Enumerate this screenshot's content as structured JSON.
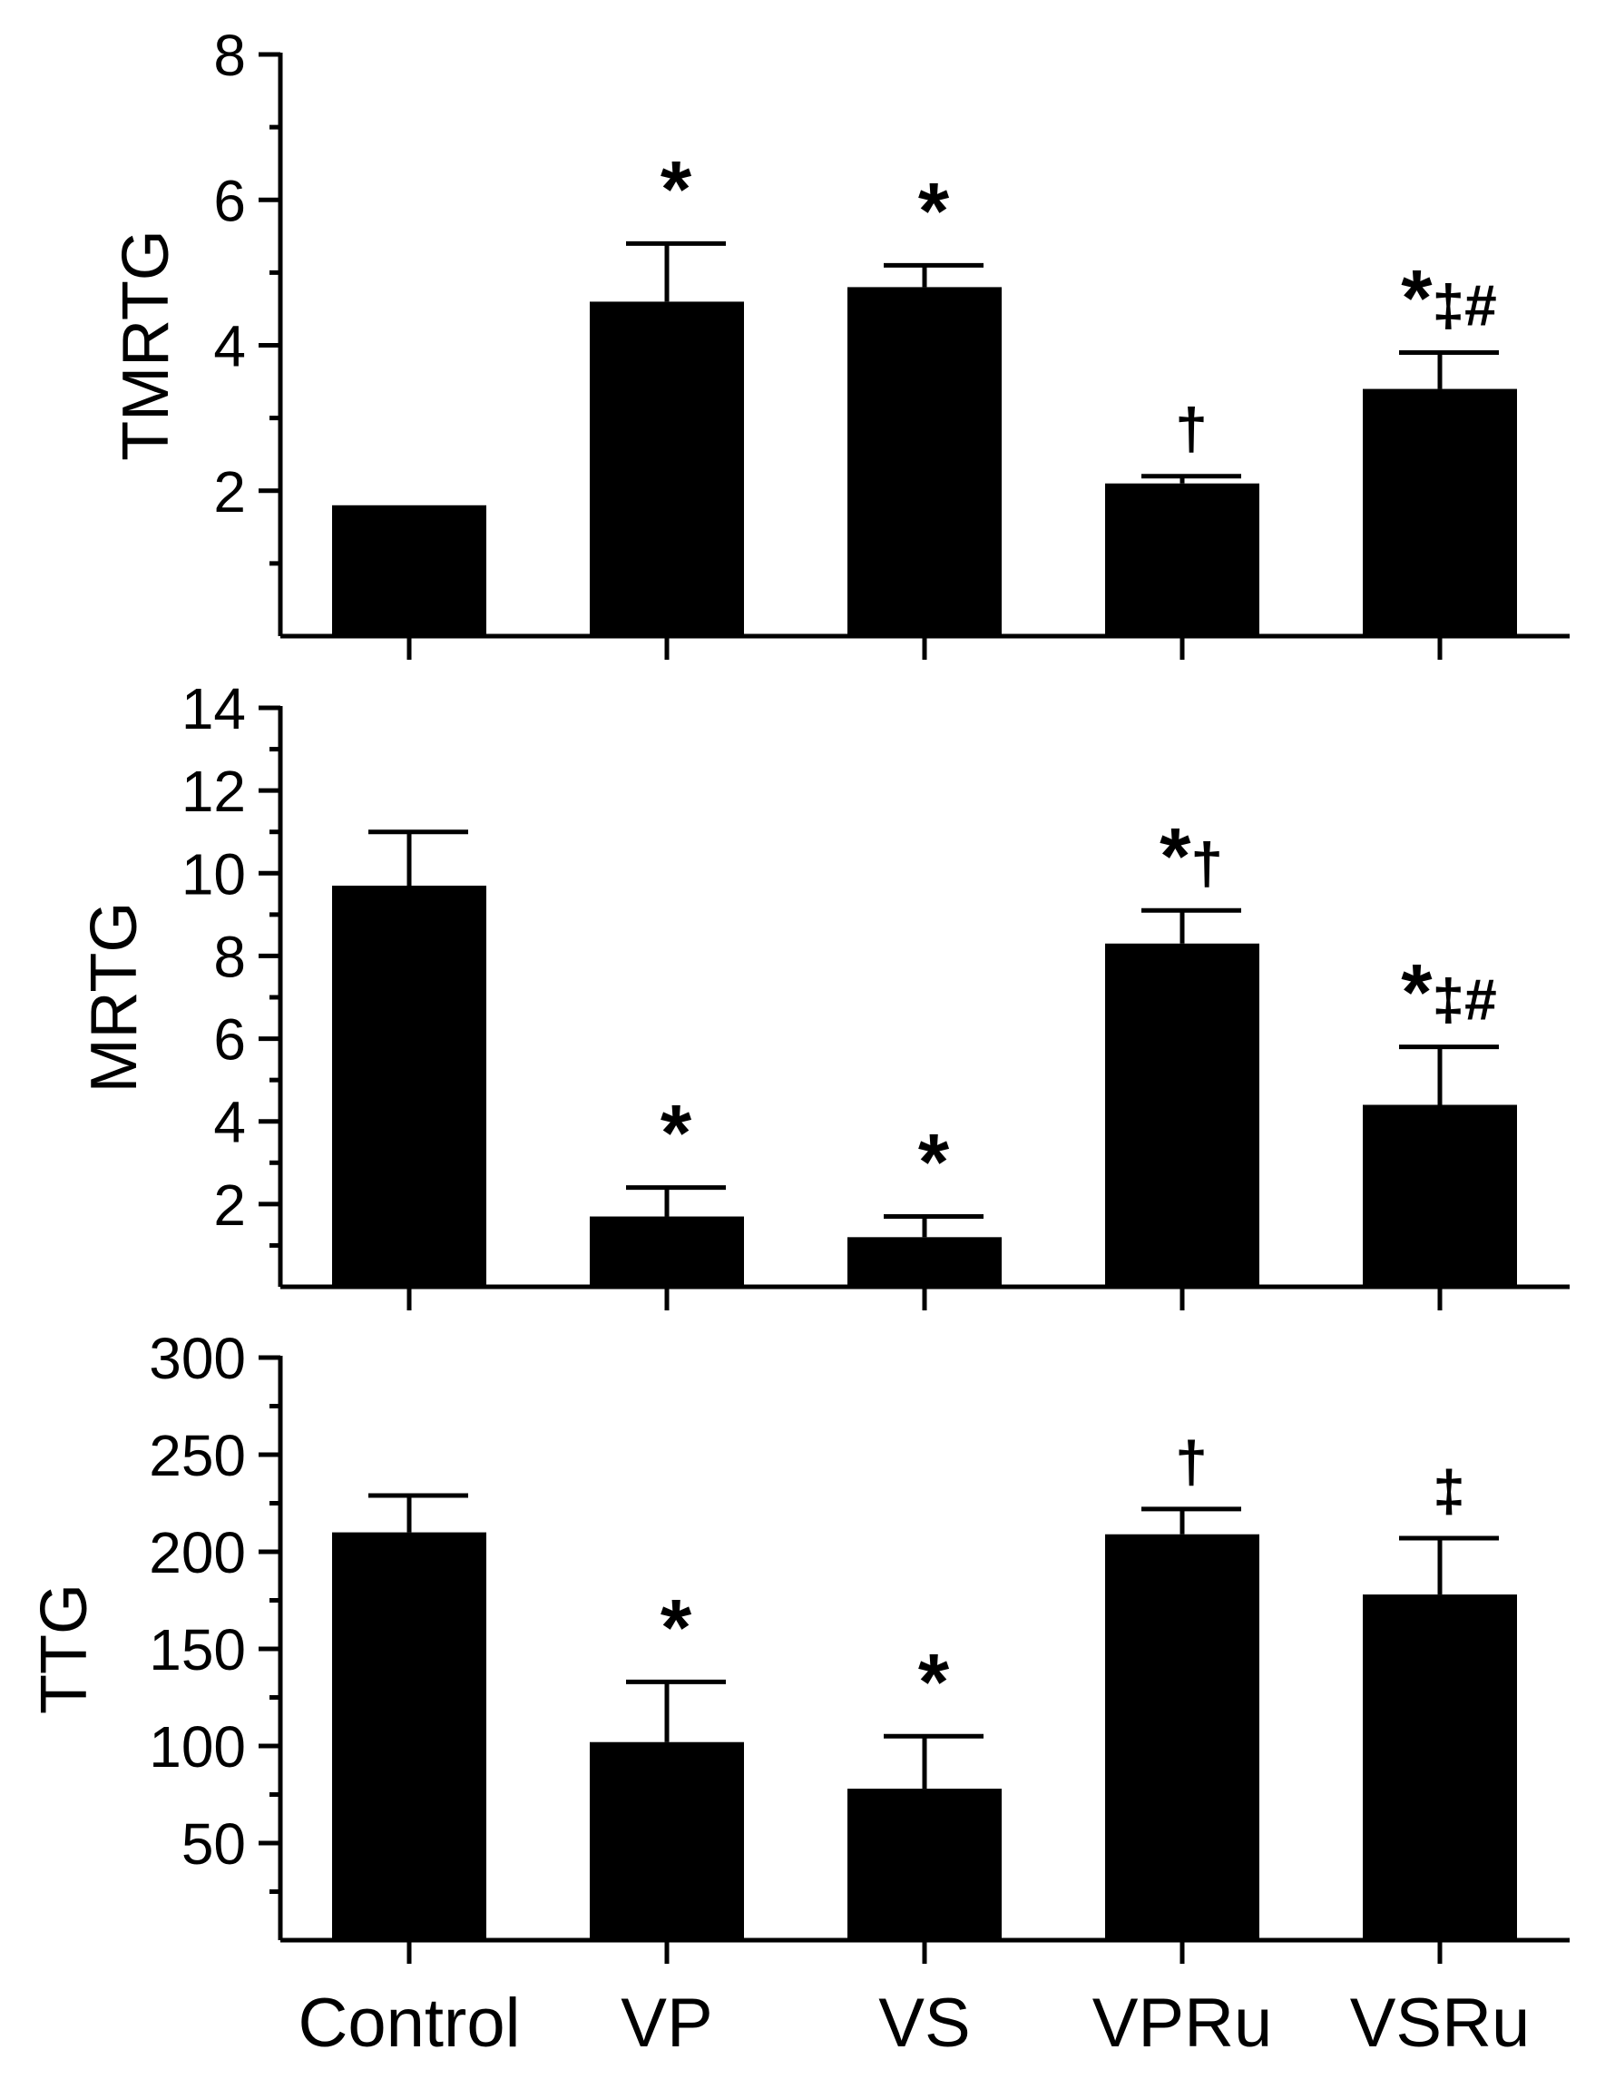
{
  "chart_data": [
    {
      "type": "bar",
      "ylabel": "TMRTG",
      "categories": [
        "Control",
        "VP",
        "VS",
        "VPRu",
        "VSRu"
      ],
      "values": [
        1.8,
        4.6,
        4.8,
        2.1,
        3.4
      ],
      "errors": [
        0,
        0.8,
        0.3,
        0.1,
        0.5
      ],
      "significance": [
        "",
        "*",
        "*",
        "†",
        "*‡#"
      ],
      "ylim": [
        0,
        8
      ],
      "yticks": [
        2,
        4,
        6,
        8
      ],
      "minor_step": 1
    },
    {
      "type": "bar",
      "ylabel": "MRTG",
      "categories": [
        "Control",
        "VP",
        "VS",
        "VPRu",
        "VSRu"
      ],
      "values": [
        9.7,
        1.7,
        1.2,
        8.3,
        4.4
      ],
      "errors": [
        1.3,
        0.7,
        0.5,
        0.8,
        1.4
      ],
      "significance": [
        "",
        "*",
        "*",
        "*†",
        "*‡#"
      ],
      "ylim": [
        0,
        14
      ],
      "yticks": [
        2,
        4,
        6,
        8,
        10,
        12,
        14
      ],
      "minor_step": 1
    },
    {
      "type": "bar",
      "ylabel": "TTG",
      "categories": [
        "Control",
        "VP",
        "VS",
        "VPRu",
        "VSRu"
      ],
      "values": [
        210,
        102,
        78,
        209,
        178
      ],
      "errors": [
        19,
        31,
        27,
        13,
        29
      ],
      "significance": [
        "",
        "*",
        "*",
        "†",
        "‡"
      ],
      "ylim": [
        0,
        300
      ],
      "yticks": [
        50,
        100,
        150,
        200,
        250,
        300
      ],
      "minor_step": 25
    }
  ],
  "x_axis": {
    "labels": [
      "Control",
      "VP",
      "VS",
      "VPRu",
      "VSRu"
    ]
  }
}
